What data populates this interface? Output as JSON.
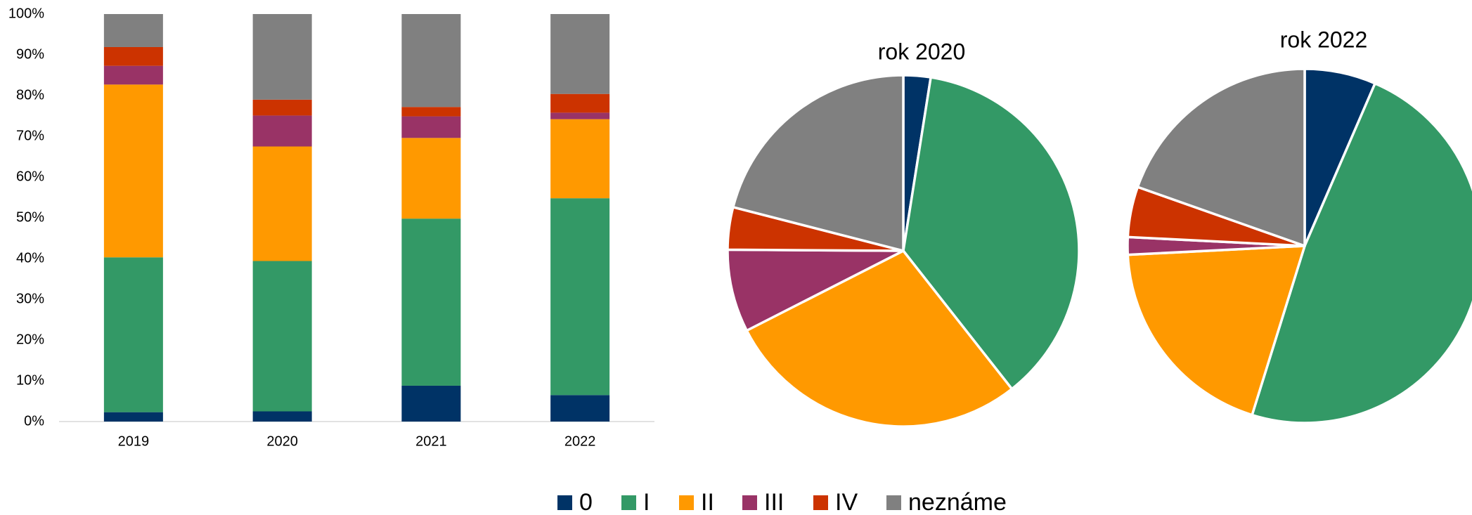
{
  "chart_data": [
    {
      "type": "bar",
      "stacked": true,
      "categories": [
        "2019",
        "2020",
        "2021",
        "2022"
      ],
      "series": [
        {
          "name": "0",
          "color": "#003366",
          "values": [
            2.3,
            2.5,
            8.8,
            6.5
          ]
        },
        {
          "name": "I",
          "color": "#339966",
          "values": [
            38.0,
            36.9,
            41.0,
            48.3
          ]
        },
        {
          "name": "II",
          "color": "#ff9900",
          "values": [
            42.4,
            28.1,
            19.8,
            19.4
          ]
        },
        {
          "name": "III",
          "color": "#993366",
          "values": [
            4.6,
            7.6,
            5.3,
            1.6
          ]
        },
        {
          "name": "IV",
          "color": "#cc3300",
          "values": [
            4.6,
            3.9,
            2.3,
            4.6
          ]
        },
        {
          "name": "neznáme",
          "color": "#808080",
          "values": [
            8.1,
            21.0,
            22.8,
            19.6
          ]
        }
      ],
      "ylim": [
        0,
        100
      ],
      "yticks": [
        {
          "value": 0,
          "label": "0%"
        },
        {
          "value": 10,
          "label": "10%"
        },
        {
          "value": 20,
          "label": "20%"
        },
        {
          "value": 30,
          "label": "30%"
        },
        {
          "value": 40,
          "label": "40%"
        },
        {
          "value": 50,
          "label": "50%"
        },
        {
          "value": 60,
          "label": "60%"
        },
        {
          "value": 70,
          "label": "70%"
        },
        {
          "value": 80,
          "label": "80%"
        },
        {
          "value": 90,
          "label": "90%"
        },
        {
          "value": 100,
          "label": "100%"
        }
      ],
      "legend": "bottom"
    },
    {
      "type": "pie",
      "title": "rok 2020",
      "values": [
        2.5,
        36.9,
        28.1,
        7.6,
        3.9,
        21.0
      ],
      "colors": [
        "#003366",
        "#339966",
        "#ff9900",
        "#993366",
        "#cc3300",
        "#808080"
      ]
    },
    {
      "type": "pie",
      "title": "rok 2022",
      "values": [
        6.5,
        48.3,
        19.4,
        1.6,
        4.6,
        19.6
      ],
      "colors": [
        "#003366",
        "#339966",
        "#ff9900",
        "#993366",
        "#cc3300",
        "#808080"
      ]
    }
  ]
}
